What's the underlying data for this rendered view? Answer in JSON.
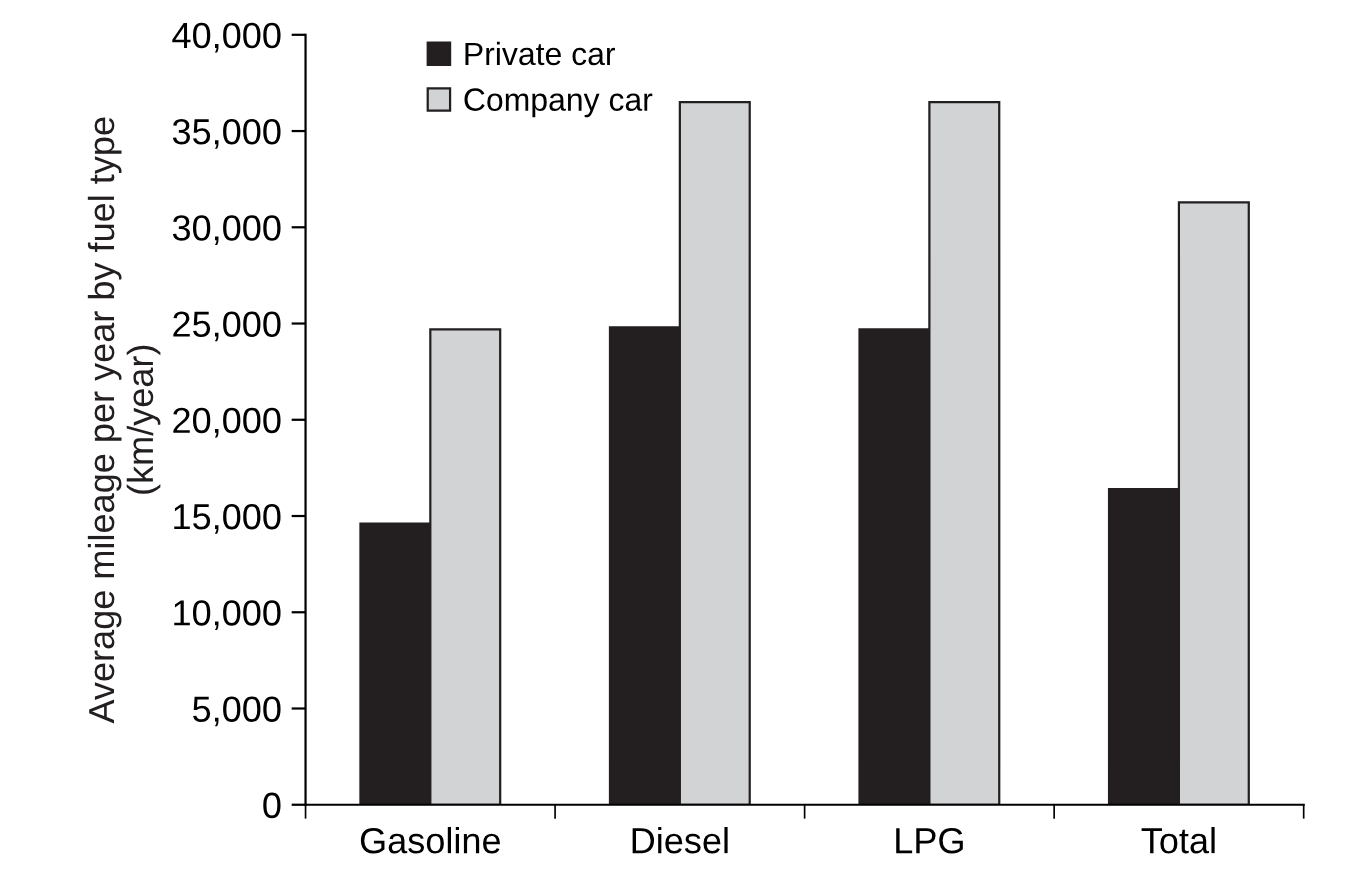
{
  "chart_data": {
    "type": "bar",
    "ylabel": "Average mileage per year by fuel type\n(km/year)",
    "categories": [
      "Gasoline",
      "Diesel",
      "LPG",
      "Total"
    ],
    "series": [
      {
        "name": "Private car",
        "color": "#231f20",
        "values": [
          14600,
          24800,
          24700,
          16400
        ]
      },
      {
        "name": "Company car",
        "color": "#d1d3d4",
        "values": [
          24700,
          36500,
          36500,
          31300
        ]
      }
    ],
    "ylim": [
      0,
      40000
    ],
    "yticks": [
      {
        "value": 0,
        "label": "0"
      },
      {
        "value": 5000,
        "label": "5,000"
      },
      {
        "value": 10000,
        "label": "10,000"
      },
      {
        "value": 15000,
        "label": "15,000"
      },
      {
        "value": 20000,
        "label": "20,000"
      },
      {
        "value": 25000,
        "label": "25,000"
      },
      {
        "value": 30000,
        "label": "30,000"
      },
      {
        "value": 35000,
        "label": "35,000"
      },
      {
        "value": 40000,
        "label": "40,000"
      }
    ],
    "grid": false,
    "legend": "top left"
  }
}
